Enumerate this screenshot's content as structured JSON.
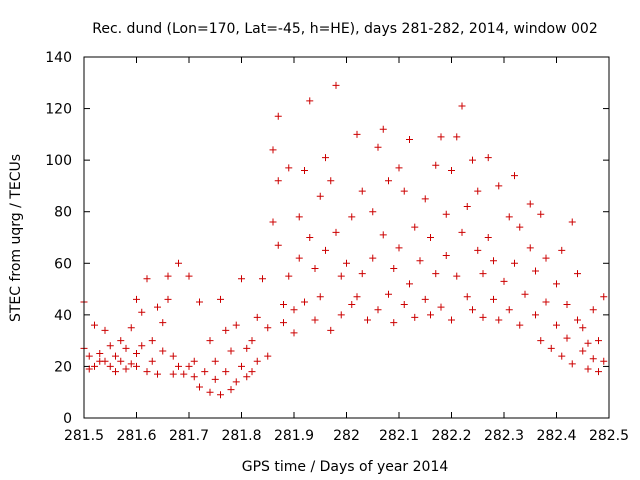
{
  "chart_data": {
    "type": "scatter",
    "title": "Rec. dund (Lon=170, Lat=-45, h=HE), days 281-282, 2014, window 002",
    "xlabel": "GPS time / Days of year 2014",
    "ylabel": "STEC from uqrg / TECUs",
    "xlim": [
      281.5,
      282.5
    ],
    "ylim": [
      0,
      140
    ],
    "xticks": [
      "281.5",
      "281.6",
      "281.7",
      "281.8",
      "281.9",
      "282",
      "282.1",
      "282.2",
      "282.3",
      "282.4",
      "282.5"
    ],
    "yticks": [
      "0",
      "20",
      "40",
      "60",
      "80",
      "100",
      "120",
      "140"
    ],
    "grid": false,
    "marker": "plus",
    "color": "#cc0000",
    "series": [
      {
        "points": [
          [
            281.5,
            45
          ],
          [
            281.5,
            27
          ],
          [
            281.51,
            19
          ],
          [
            281.51,
            24
          ],
          [
            281.52,
            20
          ],
          [
            281.52,
            36
          ],
          [
            281.53,
            22
          ],
          [
            281.53,
            25
          ],
          [
            281.54,
            34
          ],
          [
            281.54,
            22
          ],
          [
            281.55,
            20
          ],
          [
            281.55,
            28
          ],
          [
            281.56,
            18
          ],
          [
            281.56,
            24
          ],
          [
            281.57,
            30
          ],
          [
            281.57,
            22
          ],
          [
            281.58,
            19
          ],
          [
            281.58,
            27
          ],
          [
            281.59,
            35
          ],
          [
            281.59,
            21
          ],
          [
            281.6,
            46
          ],
          [
            281.6,
            25
          ],
          [
            281.6,
            20
          ],
          [
            281.61,
            41
          ],
          [
            281.61,
            28
          ],
          [
            281.62,
            54
          ],
          [
            281.62,
            18
          ],
          [
            281.63,
            30
          ],
          [
            281.63,
            22
          ],
          [
            281.64,
            43
          ],
          [
            281.64,
            17
          ],
          [
            281.65,
            26
          ],
          [
            281.65,
            37
          ],
          [
            281.66,
            55
          ],
          [
            281.66,
            46
          ],
          [
            281.67,
            17
          ],
          [
            281.67,
            24
          ],
          [
            281.68,
            60
          ],
          [
            281.68,
            20
          ],
          [
            281.69,
            17
          ],
          [
            281.7,
            55
          ],
          [
            281.7,
            20
          ],
          [
            281.71,
            16
          ],
          [
            281.71,
            22
          ],
          [
            281.72,
            45
          ],
          [
            281.72,
            12
          ],
          [
            281.73,
            18
          ],
          [
            281.74,
            10
          ],
          [
            281.74,
            30
          ],
          [
            281.75,
            15
          ],
          [
            281.75,
            22
          ],
          [
            281.76,
            46
          ],
          [
            281.76,
            9
          ],
          [
            281.77,
            34
          ],
          [
            281.77,
            18
          ],
          [
            281.78,
            11
          ],
          [
            281.78,
            26
          ],
          [
            281.79,
            36
          ],
          [
            281.79,
            14
          ],
          [
            281.8,
            54
          ],
          [
            281.8,
            20
          ],
          [
            281.81,
            27
          ],
          [
            281.81,
            16
          ],
          [
            281.82,
            30
          ],
          [
            281.82,
            18
          ],
          [
            281.83,
            39
          ],
          [
            281.83,
            22
          ],
          [
            281.84,
            54
          ],
          [
            281.85,
            35
          ],
          [
            281.85,
            24
          ],
          [
            281.86,
            76
          ],
          [
            281.86,
            104
          ],
          [
            281.87,
            92
          ],
          [
            281.87,
            117
          ],
          [
            281.87,
            67
          ],
          [
            281.88,
            44
          ],
          [
            281.88,
            37
          ],
          [
            281.89,
            55
          ],
          [
            281.89,
            97
          ],
          [
            281.9,
            42
          ],
          [
            281.9,
            33
          ],
          [
            281.91,
            78
          ],
          [
            281.91,
            62
          ],
          [
            281.92,
            96
          ],
          [
            281.92,
            45
          ],
          [
            281.93,
            123
          ],
          [
            281.93,
            70
          ],
          [
            281.94,
            58
          ],
          [
            281.94,
            38
          ],
          [
            281.95,
            86
          ],
          [
            281.95,
            47
          ],
          [
            281.96,
            101
          ],
          [
            281.96,
            65
          ],
          [
            281.97,
            92
          ],
          [
            281.97,
            34
          ],
          [
            281.98,
            129
          ],
          [
            281.98,
            72
          ],
          [
            281.99,
            55
          ],
          [
            281.99,
            40
          ],
          [
            282,
            60
          ],
          [
            282.01,
            44
          ],
          [
            282.01,
            78
          ],
          [
            282.02,
            110
          ],
          [
            282.02,
            47
          ],
          [
            282.03,
            88
          ],
          [
            282.03,
            56
          ],
          [
            282.04,
            38
          ],
          [
            282.05,
            80
          ],
          [
            282.05,
            62
          ],
          [
            282.06,
            42
          ],
          [
            282.06,
            105
          ],
          [
            282.07,
            71
          ],
          [
            282.07,
            112
          ],
          [
            282.08,
            48
          ],
          [
            282.08,
            92
          ],
          [
            282.09,
            58
          ],
          [
            282.09,
            37
          ],
          [
            282.1,
            97
          ],
          [
            282.1,
            66
          ],
          [
            282.11,
            44
          ],
          [
            282.11,
            88
          ],
          [
            282.12,
            108
          ],
          [
            282.12,
            52
          ],
          [
            282.13,
            74
          ],
          [
            282.13,
            39
          ],
          [
            282.14,
            61
          ],
          [
            282.15,
            85
          ],
          [
            282.15,
            46
          ],
          [
            282.16,
            40
          ],
          [
            282.16,
            70
          ],
          [
            282.17,
            56
          ],
          [
            282.17,
            98
          ],
          [
            282.18,
            109
          ],
          [
            282.18,
            43
          ],
          [
            282.19,
            79
          ],
          [
            282.19,
            63
          ],
          [
            282.2,
            96
          ],
          [
            282.2,
            38
          ],
          [
            282.21,
            109
          ],
          [
            282.21,
            55
          ],
          [
            282.22,
            121
          ],
          [
            282.22,
            72
          ],
          [
            282.23,
            47
          ],
          [
            282.23,
            82
          ],
          [
            282.24,
            100
          ],
          [
            282.24,
            42
          ],
          [
            282.25,
            65
          ],
          [
            282.25,
            88
          ],
          [
            282.26,
            39
          ],
          [
            282.26,
            56
          ],
          [
            282.27,
            101
          ],
          [
            282.27,
            70
          ],
          [
            282.28,
            46
          ],
          [
            282.28,
            61
          ],
          [
            282.29,
            90
          ],
          [
            282.29,
            38
          ],
          [
            282.3,
            53
          ],
          [
            282.31,
            78
          ],
          [
            282.31,
            42
          ],
          [
            282.32,
            60
          ],
          [
            282.32,
            94
          ],
          [
            282.33,
            36
          ],
          [
            282.33,
            74
          ],
          [
            282.34,
            48
          ],
          [
            282.35,
            66
          ],
          [
            282.35,
            83
          ],
          [
            282.36,
            40
          ],
          [
            282.36,
            57
          ],
          [
            282.37,
            79
          ],
          [
            282.37,
            30
          ],
          [
            282.38,
            45
          ],
          [
            282.38,
            62
          ],
          [
            282.39,
            27
          ],
          [
            282.4,
            52
          ],
          [
            282.4,
            36
          ],
          [
            282.41,
            65
          ],
          [
            282.41,
            24
          ],
          [
            282.42,
            44
          ],
          [
            282.42,
            31
          ],
          [
            282.43,
            76
          ],
          [
            282.43,
            21
          ],
          [
            282.44,
            38
          ],
          [
            282.44,
            56
          ],
          [
            282.45,
            26
          ],
          [
            282.45,
            35
          ],
          [
            282.46,
            19
          ],
          [
            282.46,
            29
          ],
          [
            282.47,
            42
          ],
          [
            282.47,
            23
          ],
          [
            282.48,
            30
          ],
          [
            282.48,
            18
          ],
          [
            282.49,
            47
          ],
          [
            282.49,
            22
          ]
        ]
      }
    ]
  }
}
